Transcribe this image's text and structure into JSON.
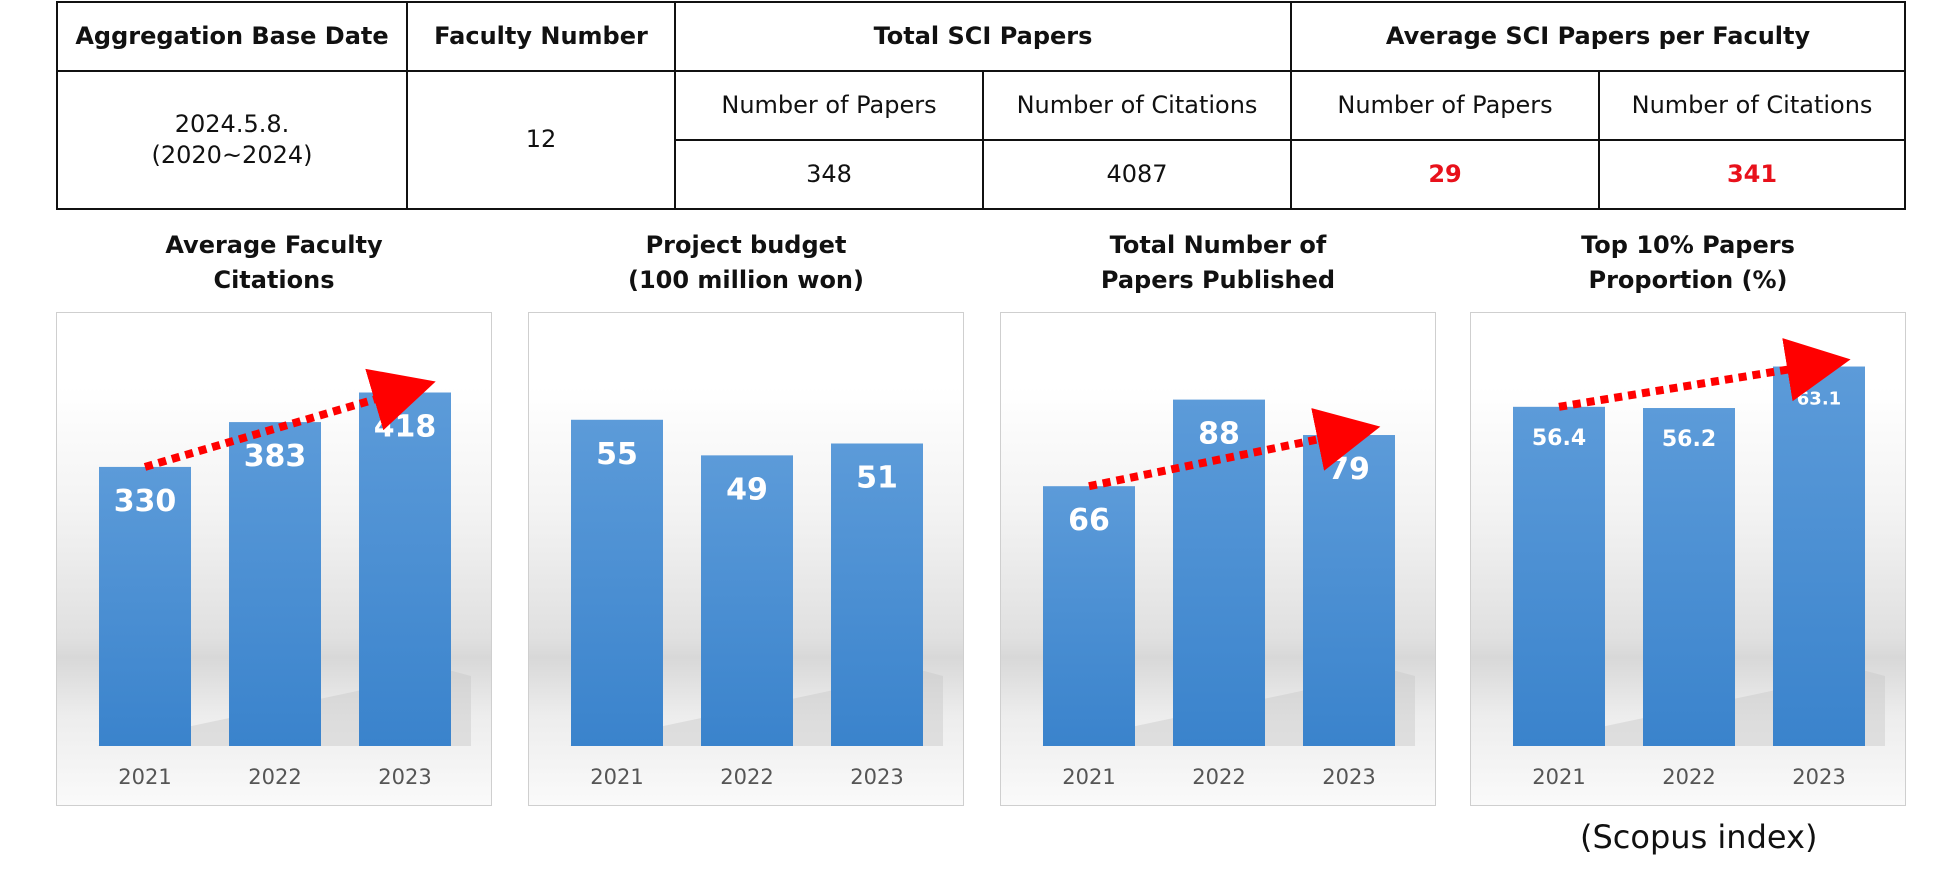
{
  "summary_table": {
    "headers": {
      "base_date": "Aggregation Base Date",
      "faculty_number": "Faculty Number",
      "total_sci": "Total SCI Papers",
      "avg_sci": "Average SCI Papers per Faculty"
    },
    "subheaders": {
      "total_papers": "Number of Papers",
      "total_citations": "Number of Citations",
      "avg_papers": "Number of Papers",
      "avg_citations": "Number of Citations"
    },
    "values": {
      "base_date": "2024.5.8.\n(2020~2024)",
      "faculty_number": "12",
      "total_papers": "348",
      "total_citations": "4087",
      "avg_papers": "29",
      "avg_citations": "341"
    },
    "highlight_color": "#e8111b"
  },
  "chart_data": [
    {
      "type": "bar",
      "title": "Average Faculty\nCitations",
      "categories": [
        "2021",
        "2022",
        "2023"
      ],
      "values": [
        330,
        383,
        418
      ],
      "value_labels": [
        "330",
        "383",
        "418"
      ],
      "ylim": [
        0,
        512
      ],
      "trend_arrow": true,
      "trend_arrow_color": "#ff0000",
      "bar_color": "#4a8fd4"
    },
    {
      "type": "bar",
      "title": "Project budget\n(100 million won)",
      "categories": [
        "2021",
        "2022",
        "2023"
      ],
      "values": [
        55,
        49,
        51
      ],
      "value_labels": [
        "55",
        "49",
        "51"
      ],
      "ylim": [
        0,
        73
      ],
      "trend_arrow": false,
      "bar_color": "#4a8fd4"
    },
    {
      "type": "bar",
      "title": "Total Number of\nPapers Published",
      "categories": [
        "2021",
        "2022",
        "2023"
      ],
      "values": [
        66,
        88,
        79
      ],
      "value_labels": [
        "66",
        "88",
        "79"
      ],
      "ylim": [
        0,
        110
      ],
      "trend_arrow": true,
      "trend_arrow_color": "#ff0000",
      "bar_color": "#4a8fd4"
    },
    {
      "type": "bar",
      "title": "Top 10% Papers\nProportion (%)",
      "categories": [
        "2021",
        "2022",
        "2023"
      ],
      "values": [
        56.4,
        56.2,
        63.1
      ],
      "value_labels": [
        "56.4",
        "56.2",
        "63.1"
      ],
      "ylim": [
        0,
        72
      ],
      "trend_arrow": true,
      "trend_arrow_color": "#ff0000",
      "bar_color": "#4a8fd4"
    }
  ],
  "footnote": "(Scopus index)"
}
